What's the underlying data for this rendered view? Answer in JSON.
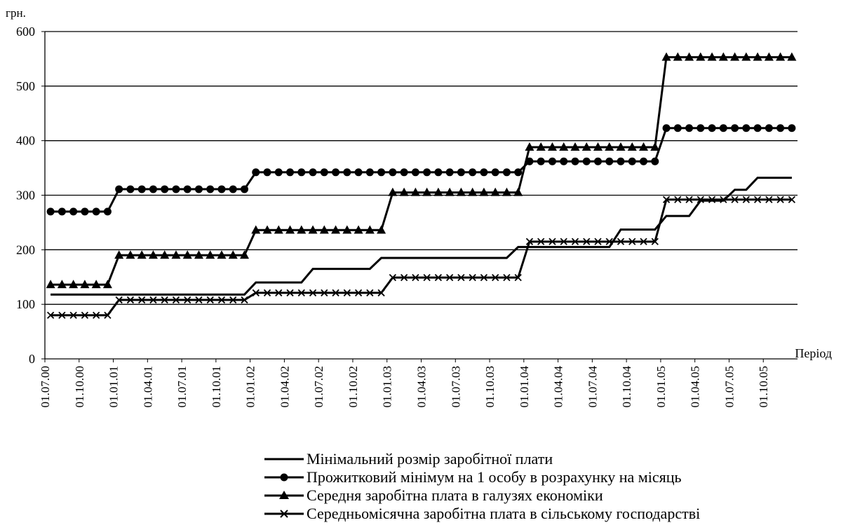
{
  "chart_data": {
    "type": "line",
    "y_unit_label": "грн.",
    "x_axis_label": "Період",
    "ylim": [
      0,
      600
    ],
    "y_ticks": [
      0,
      100,
      200,
      300,
      400,
      500,
      600
    ],
    "grid": "horizontal",
    "legend_position": "bottom-right",
    "period_start": "07.2000",
    "period_end": "12.2005",
    "x_tick_labels": [
      "01.07.00",
      "01.10.00",
      "01.01.01",
      "01.04.01",
      "01.07.01",
      "01.10.01",
      "01.01.02",
      "01.04.02",
      "01.07.02",
      "01.10.02",
      "01.01.03",
      "01.04.03",
      "01.07.03",
      "01.10.03",
      "01.01.04",
      "01.04.04",
      "01.07.04",
      "01.10.04",
      "01.01.05",
      "01.04.05",
      "01.07.05",
      "01.10.05"
    ],
    "series": [
      {
        "name": "Мінімальний розмір заробітної плати",
        "marker": "none",
        "color": "#000000",
        "steps": [
          {
            "from": "07.2000",
            "to": "12.2001",
            "value": 118
          },
          {
            "from": "01.2002",
            "to": "05.2002",
            "value": 140
          },
          {
            "from": "06.2002",
            "to": "11.2002",
            "value": 165
          },
          {
            "from": "12.2002",
            "to": "11.2003",
            "value": 185
          },
          {
            "from": "12.2003",
            "to": "08.2004",
            "value": 205
          },
          {
            "from": "09.2004",
            "to": "12.2004",
            "value": 237
          },
          {
            "from": "01.2005",
            "to": "03.2005",
            "value": 262
          },
          {
            "from": "04.2005",
            "to": "06.2005",
            "value": 290
          },
          {
            "from": "07.2005",
            "to": "08.2005",
            "value": 310
          },
          {
            "from": "09.2005",
            "to": "12.2005",
            "value": 332
          }
        ]
      },
      {
        "name": "Прожитковий мінімум на 1 особу в розрахунку на місяць",
        "marker": "circle",
        "color": "#000000",
        "steps": [
          {
            "from": "07.2000",
            "to": "12.2000",
            "value": 270
          },
          {
            "from": "01.2001",
            "to": "12.2001",
            "value": 311
          },
          {
            "from": "01.2002",
            "to": "12.2003",
            "value": 342
          },
          {
            "from": "01.2004",
            "to": "12.2004",
            "value": 362
          },
          {
            "from": "01.2005",
            "to": "12.2005",
            "value": 423
          }
        ]
      },
      {
        "name": "Середня заробітна плата в галузях економіки",
        "marker": "triangle",
        "color": "#000000",
        "steps": [
          {
            "from": "07.2000",
            "to": "12.2000",
            "value": 136
          },
          {
            "from": "01.2001",
            "to": "12.2001",
            "value": 190
          },
          {
            "from": "01.2002",
            "to": "12.2002",
            "value": 236
          },
          {
            "from": "01.2003",
            "to": "12.2003",
            "value": 305
          },
          {
            "from": "01.2004",
            "to": "12.2004",
            "value": 388
          },
          {
            "from": "01.2005",
            "to": "12.2005",
            "value": 553
          }
        ]
      },
      {
        "name": "Середньомісячна заробітна плата в сільському господарстві",
        "marker": "x",
        "color": "#000000",
        "steps": [
          {
            "from": "07.2000",
            "to": "12.2000",
            "value": 80
          },
          {
            "from": "01.2001",
            "to": "12.2001",
            "value": 108
          },
          {
            "from": "01.2002",
            "to": "12.2002",
            "value": 121
          },
          {
            "from": "01.2003",
            "to": "12.2003",
            "value": 149
          },
          {
            "from": "01.2004",
            "to": "12.2004",
            "value": 215
          },
          {
            "from": "01.2005",
            "to": "12.2005",
            "value": 292
          }
        ]
      }
    ]
  }
}
